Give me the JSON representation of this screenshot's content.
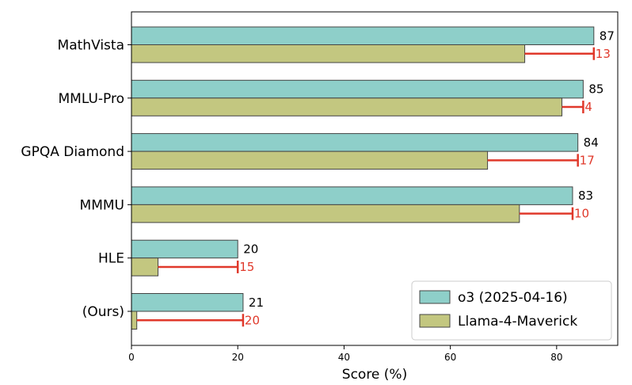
{
  "chart_data": {
    "type": "bar",
    "orientation": "horizontal",
    "categories": [
      "MathVista",
      "MMLU-Pro",
      "GPQA Diamond",
      "MMMU",
      "HLE",
      "(Ours)"
    ],
    "series": [
      {
        "name": "o3 (2025-04-16)",
        "values": [
          87,
          85,
          84,
          83,
          20,
          21
        ],
        "color": "#8ecfc9"
      },
      {
        "name": "Llama-4-Maverick",
        "values": [
          74,
          81,
          67,
          73,
          5,
          1
        ],
        "color": "#c3c780"
      }
    ],
    "gap_labels": [
      "13",
      "4",
      "17",
      "10",
      "15",
      "20"
    ],
    "gap_color": "#e0392b",
    "xlabel": "Score (%)",
    "ylabel": "",
    "title": "",
    "xlim": [
      0,
      91.5
    ],
    "xticks": [
      0,
      20,
      40,
      60,
      80
    ],
    "legend_placement": "bottom-right",
    "grid": false
  }
}
